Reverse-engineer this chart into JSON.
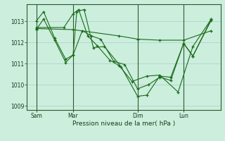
{
  "background_color": "#cceedd",
  "grid_color": "#aacccc",
  "line_color": "#1a6b1a",
  "vline_color": "#2d5a2d",
  "xlabel": "Pression niveau de la mer( hPa )",
  "ylim": [
    1008.8,
    1013.8
  ],
  "yticks": [
    1009,
    1010,
    1011,
    1012,
    1013
  ],
  "xtick_labels": [
    "Sam",
    "Mar",
    "Dim",
    "Lun"
  ],
  "xtick_positions": [
    0.5,
    2.5,
    6.0,
    8.5
  ],
  "xlim": [
    0.0,
    10.5
  ],
  "vline_positions": [
    0.5,
    2.5,
    6.0,
    8.5
  ],
  "series": [
    {
      "x": [
        0.5,
        0.9,
        1.5,
        2.1,
        2.5,
        2.7,
        3.1,
        3.6,
        4.2,
        5.1,
        6.0,
        6.5,
        7.2,
        7.8,
        8.5,
        9.0,
        10.0
      ],
      "y": [
        1013.0,
        1013.45,
        1012.2,
        1011.2,
        1011.4,
        1013.45,
        1013.55,
        1011.75,
        1011.8,
        1010.85,
        1009.45,
        1009.5,
        1010.4,
        1010.35,
        1011.95,
        1011.35,
        1013.1
      ]
    },
    {
      "x": [
        0.5,
        0.9,
        1.5,
        2.1,
        2.5,
        3.0,
        3.5,
        4.0,
        4.7,
        5.3,
        6.0,
        6.6,
        7.2,
        7.8,
        8.5,
        9.0,
        10.0
      ],
      "y": [
        1012.6,
        1013.1,
        1012.1,
        1011.05,
        1011.4,
        1012.55,
        1012.3,
        1012.15,
        1011.1,
        1010.95,
        1009.8,
        1010.0,
        1010.35,
        1010.2,
        1011.95,
        1011.35,
        1013.05
      ]
    },
    {
      "x": [
        0.5,
        2.0,
        2.5,
        2.8,
        3.3,
        3.8,
        4.5,
        5.0,
        5.7,
        6.5,
        7.2,
        8.2,
        9.0,
        10.0
      ],
      "y": [
        1012.7,
        1012.7,
        1013.35,
        1013.55,
        1012.3,
        1011.85,
        1011.15,
        1010.9,
        1010.15,
        1010.4,
        1010.45,
        1009.65,
        1011.8,
        1013.1
      ]
    },
    {
      "x": [
        0.5,
        2.5,
        5.0,
        6.0,
        7.2,
        8.5,
        10.0
      ],
      "y": [
        1012.65,
        1012.6,
        1012.3,
        1012.15,
        1012.1,
        1012.1,
        1012.55
      ]
    }
  ]
}
